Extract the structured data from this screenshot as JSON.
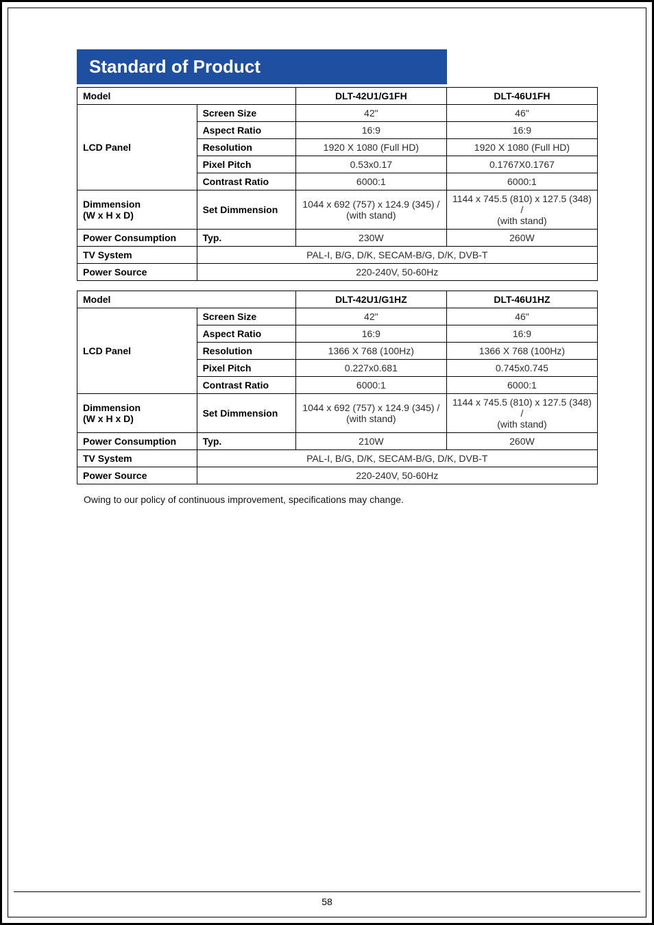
{
  "page": {
    "title": "Standard of Product",
    "footnote": "Owing to our policy of continuous improvement, specifications may change.",
    "page_number": "58"
  },
  "table1": {
    "head": {
      "model_label": "Model",
      "col_a": "DLT-42U1/G1FH",
      "col_b": "DLT-46U1FH"
    },
    "rows": {
      "panel_label": "LCD Panel",
      "screen_size": {
        "label": "Screen Size",
        "a": "42\"",
        "b": "46\""
      },
      "aspect": {
        "label": "Aspect Ratio",
        "a": "16:9",
        "b": "16:9"
      },
      "resolution": {
        "label": "Resolution",
        "a": "1920 X 1080 (Full HD)",
        "b": "1920 X 1080 (Full HD)"
      },
      "pixel_pitch": {
        "label": "Pixel Pitch",
        "a": "0.53x0.17",
        "b": "0.1767X0.1767"
      },
      "contrast": {
        "label": "Contrast Ratio",
        "a": "6000:1",
        "b": "6000:1"
      },
      "dimension": {
        "label_line1": "Dimmension",
        "label_line2": "(W x H x D)",
        "sub": "Set Dimmension",
        "a_line1": "1044 x 692 (757) x 124.9 (345) /",
        "a_line2": "(with stand)",
        "b_line1": "1144 x 745.5 (810) x 127.5 (348) /",
        "b_line2": "(with stand)"
      },
      "power_cons": {
        "label": "Power Consumption",
        "sub": "Typ.",
        "a": "230W",
        "b": "260W"
      },
      "tv_system": {
        "label": "TV System",
        "val": "PAL-I, B/G, D/K, SECAM-B/G, D/K, DVB-T"
      },
      "power_src": {
        "label": "Power Source",
        "val": "220-240V, 50-60Hz"
      }
    }
  },
  "table2": {
    "head": {
      "model_label": "Model",
      "col_a": "DLT-42U1/G1HZ",
      "col_b": "DLT-46U1HZ"
    },
    "rows": {
      "panel_label": "LCD Panel",
      "screen_size": {
        "label": "Screen Size",
        "a": "42\"",
        "b": "46\""
      },
      "aspect": {
        "label": "Aspect Ratio",
        "a": "16:9",
        "b": "16:9"
      },
      "resolution": {
        "label": "Resolution",
        "a": "1366 X 768 (100Hz)",
        "b": "1366 X 768 (100Hz)"
      },
      "pixel_pitch": {
        "label": "Pixel Pitch",
        "a": "0.227x0.681",
        "b": "0.745x0.745"
      },
      "contrast": {
        "label": "Contrast Ratio",
        "a": "6000:1",
        "b": "6000:1"
      },
      "dimension": {
        "label_line1": "Dimmension",
        "label_line2": "(W x H x D)",
        "sub": "Set Dimmension",
        "a_line1": "1044 x 692 (757) x 124.9 (345) /",
        "a_line2": "(with stand)",
        "b_line1": "1144 x 745.5 (810) x 127.5 (348) /",
        "b_line2": "(with stand)"
      },
      "power_cons": {
        "label": "Power Consumption",
        "sub": "Typ.",
        "a": "210W",
        "b": "260W"
      },
      "tv_system": {
        "label": "TV System",
        "val": "PAL-I, B/G, D/K, SECAM-B/G, D/K, DVB-T"
      },
      "power_src": {
        "label": "Power Source",
        "val": "220-240V, 50-60Hz"
      }
    }
  }
}
